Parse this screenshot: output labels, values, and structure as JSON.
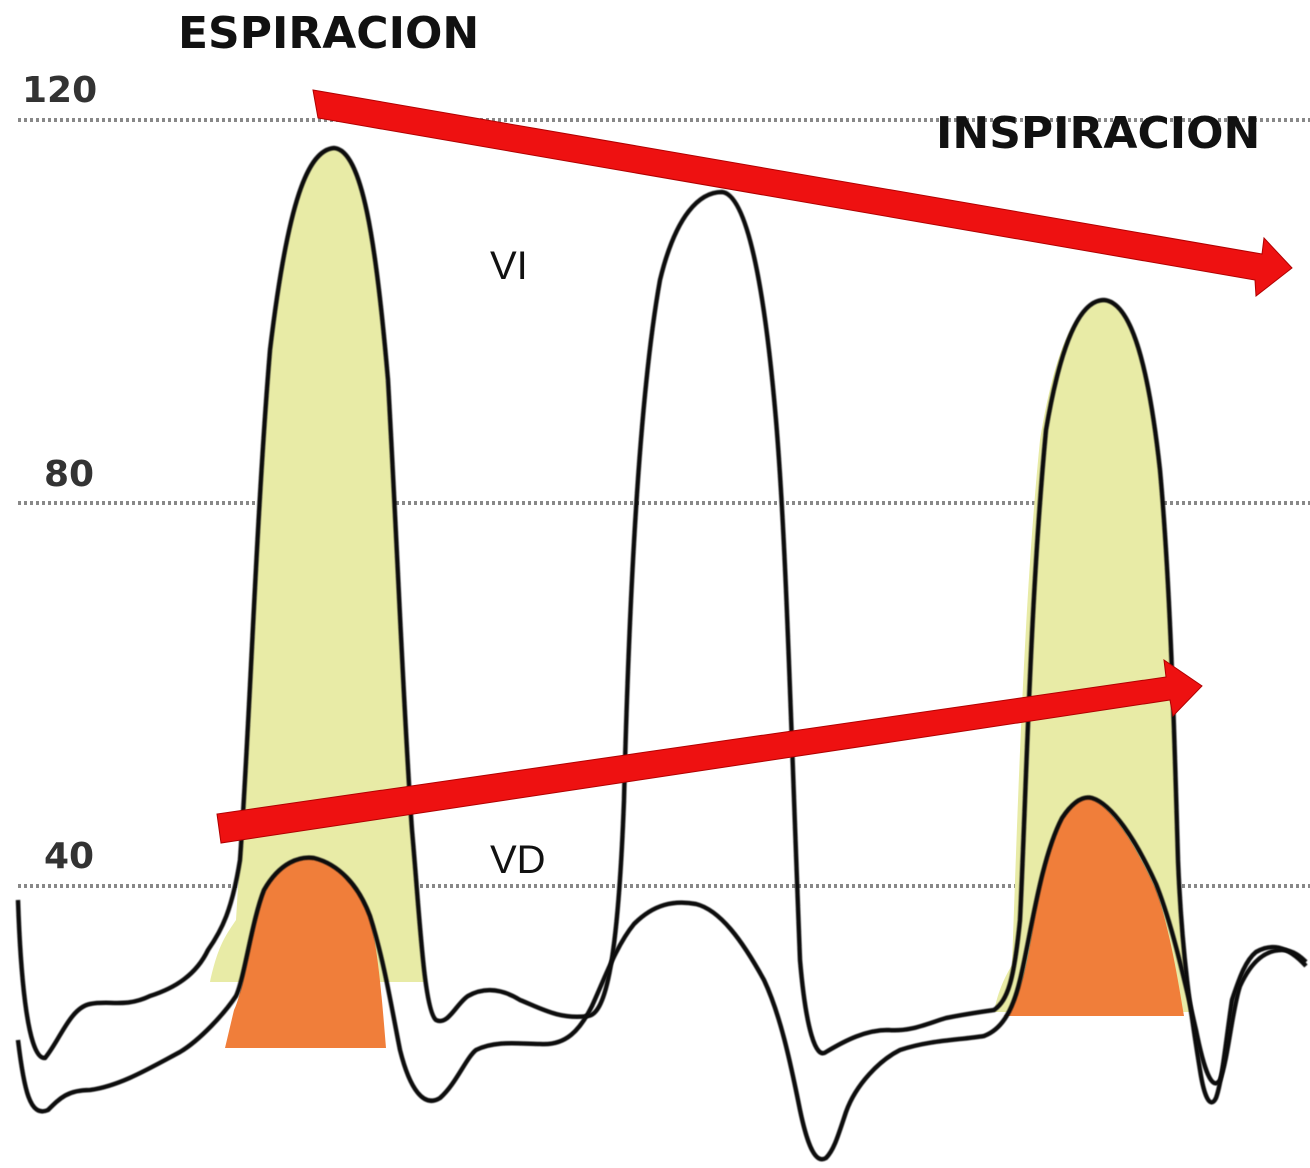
{
  "title_left": "ESPIRACION",
  "title_right": "INSPIRACION",
  "y_ticks": [
    "120",
    "80",
    "40"
  ],
  "labels": {
    "lv": "VI",
    "rv": "VD"
  },
  "colors": {
    "lv_fill": "#e8eba6",
    "rv_fill": "#f07e3a",
    "arrow": "#ee1111",
    "gridline": "#888888",
    "trace": "#111111"
  }
}
